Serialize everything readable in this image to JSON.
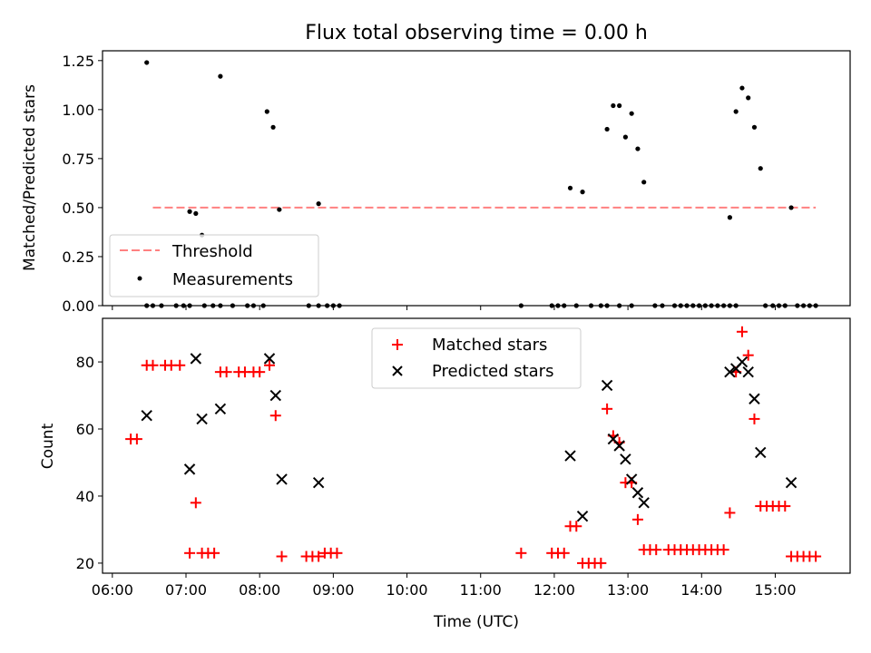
{
  "chart_data": [
    {
      "type": "scatter",
      "title": "Flux total observing time = 0.00 h",
      "xlabel": "",
      "ylabel": "Matched/Predicted stars",
      "ylim": [
        0,
        1.3
      ],
      "yticks": [
        "0.00",
        "0.25",
        "0.50",
        "0.75",
        "1.00",
        "1.25"
      ],
      "ytick_values": [
        0,
        0.25,
        0.5,
        0.75,
        1.0,
        1.25
      ],
      "legend_position": "lower-left",
      "threshold": {
        "name": "Threshold",
        "value": 0.5,
        "x_start": "06:33",
        "x_end": "15:33",
        "color": "#ff8080"
      },
      "measurements": {
        "name": "Measurements",
        "color": "#000000",
        "points": [
          [
            "06:28",
            0
          ],
          [
            "06:33",
            0
          ],
          [
            "06:40",
            0
          ],
          [
            "06:52",
            0
          ],
          [
            "06:58",
            0
          ],
          [
            "07:03",
            0
          ],
          [
            "07:15",
            0
          ],
          [
            "07:22",
            0
          ],
          [
            "07:28",
            0
          ],
          [
            "07:38",
            0
          ],
          [
            "07:50",
            0
          ],
          [
            "07:55",
            0
          ],
          [
            "08:03",
            0
          ],
          [
            "08:40",
            0
          ],
          [
            "08:48",
            0
          ],
          [
            "08:55",
            0
          ],
          [
            "09:00",
            0
          ],
          [
            "09:05",
            0
          ],
          [
            "11:33",
            0
          ],
          [
            "11:58",
            0
          ],
          [
            "12:03",
            0
          ],
          [
            "12:08",
            0
          ],
          [
            "12:18",
            0
          ],
          [
            "12:30",
            0
          ],
          [
            "12:38",
            0
          ],
          [
            "12:43",
            0
          ],
          [
            "12:53",
            0
          ],
          [
            "13:03",
            0
          ],
          [
            "13:22",
            0
          ],
          [
            "13:28",
            0
          ],
          [
            "13:38",
            0
          ],
          [
            "13:43",
            0
          ],
          [
            "13:48",
            0
          ],
          [
            "13:53",
            0
          ],
          [
            "13:58",
            0
          ],
          [
            "14:03",
            0
          ],
          [
            "14:08",
            0
          ],
          [
            "14:13",
            0
          ],
          [
            "14:18",
            0
          ],
          [
            "14:23",
            0
          ],
          [
            "14:28",
            0
          ],
          [
            "14:52",
            0
          ],
          [
            "14:58",
            0
          ],
          [
            "15:03",
            0
          ],
          [
            "15:08",
            0
          ],
          [
            "15:18",
            0
          ],
          [
            "15:23",
            0
          ],
          [
            "15:28",
            0
          ],
          [
            "15:33",
            0
          ],
          [
            "06:28",
            1.24
          ],
          [
            "07:03",
            0.48
          ],
          [
            "07:08",
            0.47
          ],
          [
            "07:13",
            0.36
          ],
          [
            "07:28",
            1.17
          ],
          [
            "08:06",
            0.99
          ],
          [
            "08:11",
            0.91
          ],
          [
            "08:16",
            0.49
          ],
          [
            "08:48",
            0.52
          ],
          [
            "12:13",
            0.6
          ],
          [
            "12:23",
            0.58
          ],
          [
            "12:43",
            0.9
          ],
          [
            "12:48",
            1.02
          ],
          [
            "12:53",
            1.02
          ],
          [
            "12:58",
            0.86
          ],
          [
            "13:03",
            0.98
          ],
          [
            "13:08",
            0.8
          ],
          [
            "13:13",
            0.63
          ],
          [
            "14:23",
            0.45
          ],
          [
            "14:28",
            0.99
          ],
          [
            "14:33",
            1.11
          ],
          [
            "14:38",
            1.06
          ],
          [
            "14:43",
            0.91
          ],
          [
            "14:48",
            0.7
          ],
          [
            "15:13",
            0.5
          ]
        ]
      }
    },
    {
      "type": "scatter",
      "title": "",
      "xlabel": "Time (UTC)",
      "ylabel": "Count",
      "ylim": [
        17,
        93
      ],
      "yticks": [
        "20",
        "40",
        "60",
        "80"
      ],
      "ytick_values": [
        20,
        40,
        60,
        80
      ],
      "x_ticks": [
        "06:00",
        "07:00",
        "08:00",
        "09:00",
        "10:00",
        "11:00",
        "12:00",
        "13:00",
        "14:00",
        "15:00"
      ],
      "xlim": [
        "05:52",
        "16:01"
      ],
      "legend_position": "top-center",
      "series": [
        {
          "name": "Matched stars",
          "marker": "plus",
          "color": "#ff0000",
          "points": [
            [
              "06:15",
              57
            ],
            [
              "06:20",
              57
            ],
            [
              "06:28",
              79
            ],
            [
              "06:33",
              79
            ],
            [
              "06:43",
              79
            ],
            [
              "06:48",
              79
            ],
            [
              "06:55",
              79
            ],
            [
              "07:03",
              23
            ],
            [
              "07:08",
              38
            ],
            [
              "07:13",
              23
            ],
            [
              "07:18",
              23
            ],
            [
              "07:23",
              23
            ],
            [
              "07:28",
              77
            ],
            [
              "07:33",
              77
            ],
            [
              "07:43",
              77
            ],
            [
              "07:48",
              77
            ],
            [
              "07:55",
              77
            ],
            [
              "08:00",
              77
            ],
            [
              "08:08",
              79
            ],
            [
              "08:13",
              64
            ],
            [
              "08:18",
              22
            ],
            [
              "08:38",
              22
            ],
            [
              "08:43",
              22
            ],
            [
              "08:48",
              22
            ],
            [
              "08:53",
              23
            ],
            [
              "08:58",
              23
            ],
            [
              "09:03",
              23
            ],
            [
              "11:33",
              23
            ],
            [
              "11:58",
              23
            ],
            [
              "12:03",
              23
            ],
            [
              "12:08",
              23
            ],
            [
              "12:13",
              31
            ],
            [
              "12:18",
              31
            ],
            [
              "12:23",
              20
            ],
            [
              "12:28",
              20
            ],
            [
              "12:33",
              20
            ],
            [
              "12:38",
              20
            ],
            [
              "12:43",
              66
            ],
            [
              "12:48",
              58
            ],
            [
              "12:53",
              56
            ],
            [
              "12:58",
              44
            ],
            [
              "13:03",
              44
            ],
            [
              "13:08",
              33
            ],
            [
              "13:13",
              24
            ],
            [
              "13:18",
              24
            ],
            [
              "13:23",
              24
            ],
            [
              "13:33",
              24
            ],
            [
              "13:38",
              24
            ],
            [
              "13:43",
              24
            ],
            [
              "13:48",
              24
            ],
            [
              "13:53",
              24
            ],
            [
              "13:58",
              24
            ],
            [
              "14:03",
              24
            ],
            [
              "14:08",
              24
            ],
            [
              "14:13",
              24
            ],
            [
              "14:18",
              24
            ],
            [
              "14:23",
              35
            ],
            [
              "14:28",
              77
            ],
            [
              "14:33",
              89
            ],
            [
              "14:38",
              82
            ],
            [
              "14:43",
              63
            ],
            [
              "14:48",
              37
            ],
            [
              "14:53",
              37
            ],
            [
              "14:58",
              37
            ],
            [
              "15:03",
              37
            ],
            [
              "15:08",
              37
            ],
            [
              "15:13",
              22
            ],
            [
              "15:18",
              22
            ],
            [
              "15:23",
              22
            ],
            [
              "15:28",
              22
            ],
            [
              "15:33",
              22
            ]
          ]
        },
        {
          "name": "Predicted stars",
          "marker": "x",
          "color": "#000000",
          "points": [
            [
              "06:28",
              64
            ],
            [
              "07:03",
              48
            ],
            [
              "07:08",
              81
            ],
            [
              "07:13",
              63
            ],
            [
              "07:28",
              66
            ],
            [
              "08:08",
              81
            ],
            [
              "08:13",
              70
            ],
            [
              "08:18",
              45
            ],
            [
              "08:48",
              44
            ],
            [
              "12:13",
              52
            ],
            [
              "12:23",
              34
            ],
            [
              "12:43",
              73
            ],
            [
              "12:48",
              57
            ],
            [
              "12:53",
              55
            ],
            [
              "12:58",
              51
            ],
            [
              "13:03",
              45
            ],
            [
              "13:08",
              41
            ],
            [
              "13:13",
              38
            ],
            [
              "14:23",
              77
            ],
            [
              "14:28",
              78
            ],
            [
              "14:33",
              80
            ],
            [
              "14:38",
              77
            ],
            [
              "14:43",
              69
            ],
            [
              "14:48",
              53
            ],
            [
              "15:13",
              44
            ]
          ]
        }
      ]
    }
  ]
}
